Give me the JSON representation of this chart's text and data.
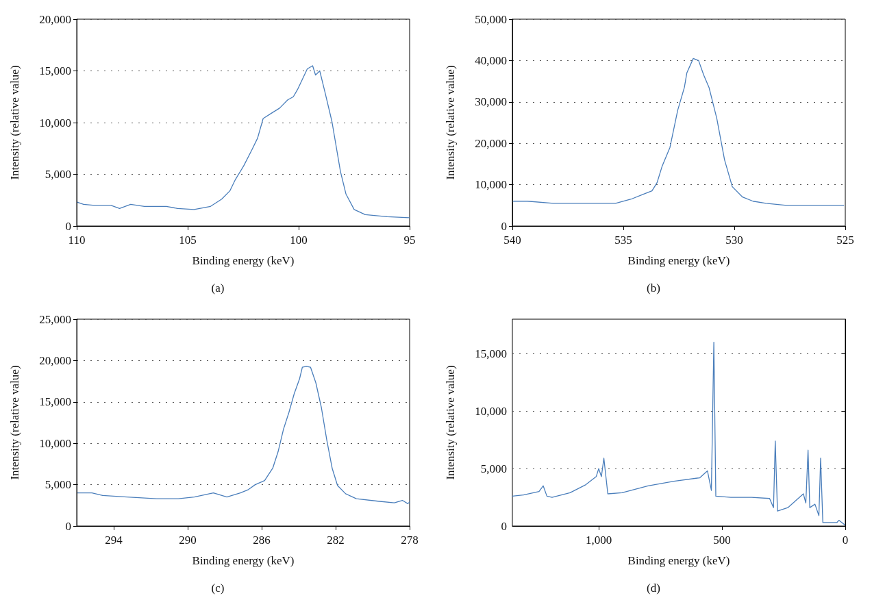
{
  "chart_data": [
    {
      "type": "line",
      "title": "(a)",
      "xlabel": "Binding energy (keV)",
      "ylabel": "Intensity (relative value)",
      "xlim": [
        110,
        95
      ],
      "xticks": [
        110,
        105,
        100,
        95
      ],
      "ylim": [
        0,
        20000
      ],
      "yticks": [
        {
          "value": 0,
          "label": "0"
        },
        {
          "value": 5000,
          "label": "5,000"
        },
        {
          "value": 10000,
          "label": "10,000"
        },
        {
          "value": 15000,
          "label": "15,000"
        },
        {
          "value": 20000,
          "label": "20,000"
        }
      ],
      "grid": "y",
      "marker": "none",
      "line_style": "solid",
      "series": [
        {
          "color": "#4a7ebb",
          "x": [
            109.96,
            109.69,
            109.19,
            108.45,
            108.07,
            107.57,
            106.95,
            105.96,
            105.46,
            104.71,
            103.97,
            103.47,
            103.1,
            102.85,
            102.48,
            102.1,
            101.85,
            101.6,
            101.23,
            100.86,
            100.49,
            100.24,
            100.05,
            99.61,
            99.37,
            99.24,
            99.05,
            98.81,
            98.5,
            98.12,
            97.87,
            97.5,
            97.0,
            96.01,
            95.01
          ],
          "values": [
            2300,
            2100,
            2000,
            2000,
            1700,
            2100,
            1900,
            1900,
            1700,
            1600,
            1900,
            2600,
            3400,
            4500,
            5800,
            7400,
            8500,
            10400,
            10900,
            11400,
            12200,
            12500,
            13200,
            15200,
            15500,
            14600,
            15000,
            12900,
            10100,
            5300,
            3100,
            1600,
            1100,
            900,
            800
          ]
        }
      ]
    },
    {
      "type": "line",
      "title": "(b)",
      "xlabel": "Binding energy (keV)",
      "ylabel": "Intensity (relative value)",
      "xlim": [
        540,
        525
      ],
      "xticks": [
        540,
        535,
        530,
        525
      ],
      "ylim": [
        0,
        50000
      ],
      "yticks": [
        {
          "value": 0,
          "label": "0"
        },
        {
          "value": 10000,
          "label": "10,000"
        },
        {
          "value": 20000,
          "label": "20,000"
        },
        {
          "value": 30000,
          "label": "30,000"
        },
        {
          "value": 40000,
          "label": "40,000"
        },
        {
          "value": 50000,
          "label": "50,000"
        }
      ],
      "grid": "y",
      "marker": "none",
      "line_style": "solid",
      "series": [
        {
          "color": "#4a7ebb",
          "x": [
            539.96,
            539.32,
            538.15,
            537.45,
            536.64,
            535.35,
            534.65,
            534.18,
            533.71,
            533.48,
            533.25,
            532.9,
            532.55,
            532.25,
            532.14,
            531.85,
            531.61,
            531.38,
            531.14,
            530.79,
            530.44,
            530.09,
            529.63,
            529.16,
            528.57,
            527.64,
            526.47,
            525.07
          ],
          "values": [
            6000,
            6000,
            5500,
            5500,
            5500,
            5500,
            6500,
            7500,
            8500,
            10500,
            14500,
            19000,
            28000,
            33500,
            37000,
            40500,
            40000,
            36500,
            33500,
            26000,
            16000,
            9500,
            7000,
            6000,
            5500,
            5000,
            5000,
            5000
          ]
        }
      ]
    },
    {
      "type": "line",
      "title": "(c)",
      "xlabel": "Binding energy (keV)",
      "ylabel": "Intensity (relative value)",
      "xlim": [
        296,
        278
      ],
      "xticks": [
        294,
        290,
        286,
        282,
        278
      ],
      "ylim": [
        0,
        25000
      ],
      "yticks": [
        {
          "value": 0,
          "label": "0"
        },
        {
          "value": 5000,
          "label": "5,000"
        },
        {
          "value": 10000,
          "label": "10,000"
        },
        {
          "value": 15000,
          "label": "15,000"
        },
        {
          "value": 20000,
          "label": "20,000"
        },
        {
          "value": 25000,
          "label": "25,000"
        }
      ],
      "grid": "y",
      "marker": "none",
      "line_style": "solid",
      "series": [
        {
          "color": "#4a7ebb",
          "x": [
            295.94,
            295.18,
            294.6,
            293.28,
            291.68,
            290.51,
            289.64,
            288.61,
            287.88,
            287.15,
            286.72,
            286.35,
            285.84,
            285.4,
            285.11,
            284.82,
            284.53,
            284.24,
            283.95,
            283.8,
            283.58,
            283.36,
            283.07,
            282.77,
            282.48,
            282.19,
            281.9,
            281.46,
            280.88,
            279.71,
            278.83,
            278.39,
            278.1,
            278.0
          ],
          "values": [
            4000,
            4000,
            3700,
            3500,
            3300,
            3300,
            3500,
            4000,
            3500,
            4000,
            4400,
            5000,
            5500,
            7000,
            9000,
            11700,
            13700,
            16000,
            17800,
            19200,
            19300,
            19200,
            17300,
            14300,
            10400,
            7000,
            4900,
            3900,
            3300,
            3000,
            2800,
            3100,
            2700,
            2900
          ]
        }
      ]
    },
    {
      "type": "line",
      "title": "(d)",
      "xlabel": "Binding energy (keV)",
      "ylabel": "Intensity (relative value)",
      "xlim": [
        1350,
        0
      ],
      "xticks": [
        {
          "value": 1000,
          "label": "1,000"
        },
        500,
        0
      ],
      "ylim": [
        0,
        18000
      ],
      "yticks": [
        {
          "value": 0,
          "label": "0"
        },
        {
          "value": 5000,
          "label": "5,000"
        },
        {
          "value": 10000,
          "label": "10,000"
        },
        {
          "value": 15000,
          "label": "15,000"
        }
      ],
      "grid": "y",
      "marker": "none",
      "line_style": "solid",
      "series": [
        {
          "color": "#4a7ebb",
          "x": [
            1350,
            1305,
            1242,
            1225,
            1210,
            1189,
            1116,
            1052,
            1010,
            1000,
            989,
            979,
            963,
            905,
            800,
            695,
            590,
            559,
            543,
            533,
            525,
            464,
            380,
            307,
            291,
            284,
            275,
            233,
            170,
            160,
            151,
            144,
            123,
            107,
            100,
            91,
            34,
            26,
            2
          ],
          "values": [
            2600,
            2700,
            3000,
            3500,
            2600,
            2500,
            2900,
            3600,
            4300,
            5000,
            4300,
            5900,
            2800,
            2900,
            3500,
            3900,
            4200,
            4800,
            3100,
            16000,
            2600,
            2500,
            2500,
            2400,
            1600,
            7400,
            1300,
            1600,
            2800,
            2000,
            6600,
            1600,
            1900,
            900,
            5900,
            300,
            300,
            500,
            100
          ]
        }
      ]
    }
  ]
}
